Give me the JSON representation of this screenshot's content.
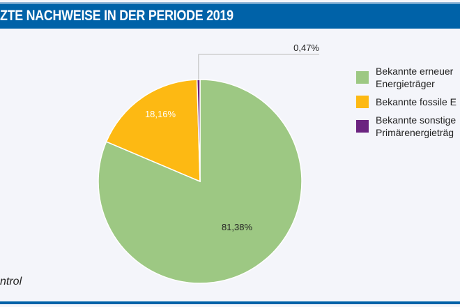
{
  "title": "ZTE NACHWEISE IN DER PERIODE 2019",
  "source": "ntrol",
  "chart_data": {
    "type": "pie",
    "start": "top",
    "direction": "clockwise",
    "slices": [
      {
        "name": "Bekannte erneuer Energieträger",
        "label": "81,38%",
        "value": 81.38,
        "color": "#9dc883"
      },
      {
        "name": "Bekannte fossile E",
        "label": "18,16%",
        "value": 18.16,
        "color": "#fdb913"
      },
      {
        "name": "Bekannte sonstige Primärenergieträg",
        "label": "0,47%",
        "value": 0.47,
        "color": "#6b2380"
      }
    ],
    "legend": {
      "placement": "right",
      "entries": [
        [
          "Bekannte erneuer",
          "Energieträger"
        ],
        [
          "Bekannte fossile E"
        ],
        [
          "Bekannte sonstige",
          "Primärenergieträg"
        ]
      ]
    }
  }
}
